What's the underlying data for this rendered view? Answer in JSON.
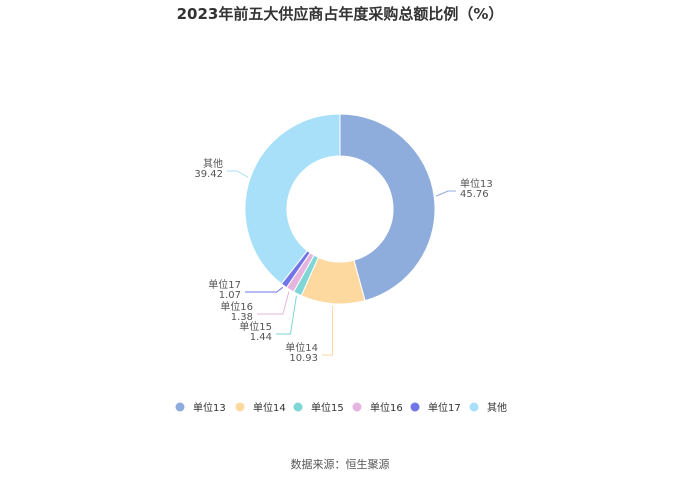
{
  "chart_data": {
    "type": "pie",
    "title": "2023年前五大供应商占年度采购总额比例（%）",
    "source": "数据来源：恒生聚源",
    "categories": [
      "单位13",
      "单位14",
      "单位15",
      "单位16",
      "单位17",
      "其他"
    ],
    "values": [
      45.76,
      10.93,
      1.44,
      1.38,
      1.07,
      39.42
    ],
    "value_labels": [
      "45.76",
      "10.93",
      "1.44",
      "1.38",
      "1.07",
      "39.42"
    ],
    "colors": [
      "#8eaddc",
      "#fdd9a0",
      "#7fd6d7",
      "#e5b5df",
      "#7275e6",
      "#a7e0f8"
    ],
    "donut": true,
    "legend_position": "bottom"
  }
}
